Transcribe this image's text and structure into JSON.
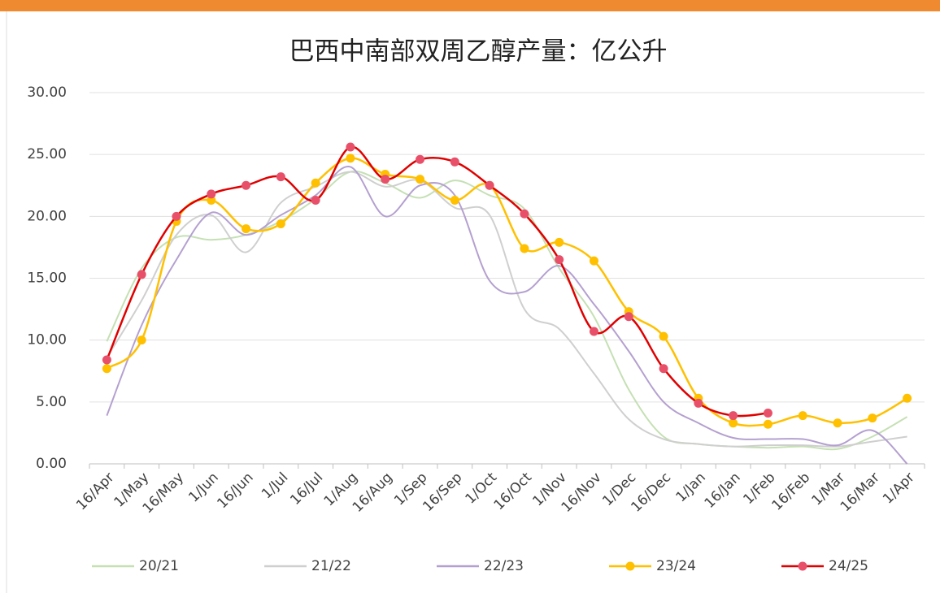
{
  "chart_data": {
    "type": "line",
    "title": "巴西中南部双周乙醇产量：亿公升",
    "categories": [
      "16/Apr",
      "1/May",
      "16/May",
      "1/Jun",
      "16/Jun",
      "1/Jul",
      "16/Jul",
      "1/Aug",
      "16/Aug",
      "1/Sep",
      "16/Sep",
      "1/Oct",
      "16/Oct",
      "1/Nov",
      "16/Nov",
      "1/Dec",
      "16/Dec",
      "1/Jan",
      "16/Jan",
      "1/Feb",
      "16/Feb",
      "1/Mar",
      "16/Mar",
      "1/Apr"
    ],
    "series": [
      {
        "name": "20/21",
        "color": "#c5e0b4",
        "markers": false,
        "values": [
          9.9,
          15.8,
          18.3,
          18.1,
          18.5,
          19.6,
          21.4,
          23.6,
          22.7,
          21.5,
          22.9,
          21.7,
          20.6,
          15.8,
          11.9,
          6.0,
          2.2,
          1.6,
          1.4,
          1.3,
          1.4,
          1.2,
          2.2,
          3.8
        ]
      },
      {
        "name": "21/22",
        "color": "#cfcfcf",
        "markers": false,
        "values": [
          8.6,
          13.2,
          18.5,
          20.1,
          17.1,
          21.1,
          22.4,
          23.6,
          22.4,
          22.9,
          20.7,
          20.1,
          12.5,
          10.9,
          7.3,
          3.6,
          2.0,
          1.6,
          1.4,
          1.5,
          1.5,
          1.4,
          1.8,
          2.2
        ]
      },
      {
        "name": "22/23",
        "color": "#b4a0d0",
        "markers": false,
        "values": [
          3.9,
          11.2,
          16.5,
          20.3,
          18.5,
          20.1,
          21.7,
          24.0,
          20.0,
          22.5,
          21.7,
          14.8,
          13.9,
          16.0,
          12.9,
          9.1,
          5.0,
          3.3,
          2.1,
          2.0,
          2.0,
          1.5,
          2.7,
          0.0
        ]
      },
      {
        "name": "23/24",
        "color": "#ffc000",
        "markers": true,
        "values": [
          7.7,
          10.0,
          19.6,
          21.3,
          19.0,
          19.4,
          22.7,
          24.7,
          23.4,
          23.0,
          21.3,
          22.5,
          17.4,
          17.9,
          16.4,
          12.3,
          10.3,
          5.3,
          3.3,
          3.2,
          3.9,
          3.3,
          3.7,
          5.3
        ]
      },
      {
        "name": "24/25",
        "color": "#e00000",
        "marker_color": "#e8506a",
        "markers": true,
        "values": [
          8.4,
          15.3,
          20.0,
          21.8,
          22.5,
          23.2,
          21.3,
          25.6,
          23.0,
          24.6,
          24.4,
          22.5,
          20.2,
          16.5,
          10.7,
          11.9,
          7.7,
          4.9,
          3.9,
          4.1,
          null,
          null,
          null,
          null
        ]
      }
    ],
    "ylim": [
      0,
      30
    ],
    "yticks": [
      {
        "value": 0,
        "label": "0.00"
      },
      {
        "value": 5,
        "label": "5.00"
      },
      {
        "value": 10,
        "label": "10.00"
      },
      {
        "value": 15,
        "label": "15.00"
      },
      {
        "value": 20,
        "label": "20.00"
      },
      {
        "value": 25,
        "label": "25.00"
      },
      {
        "value": 30,
        "label": "30.00"
      }
    ],
    "grid": true,
    "legend": "bottom"
  }
}
